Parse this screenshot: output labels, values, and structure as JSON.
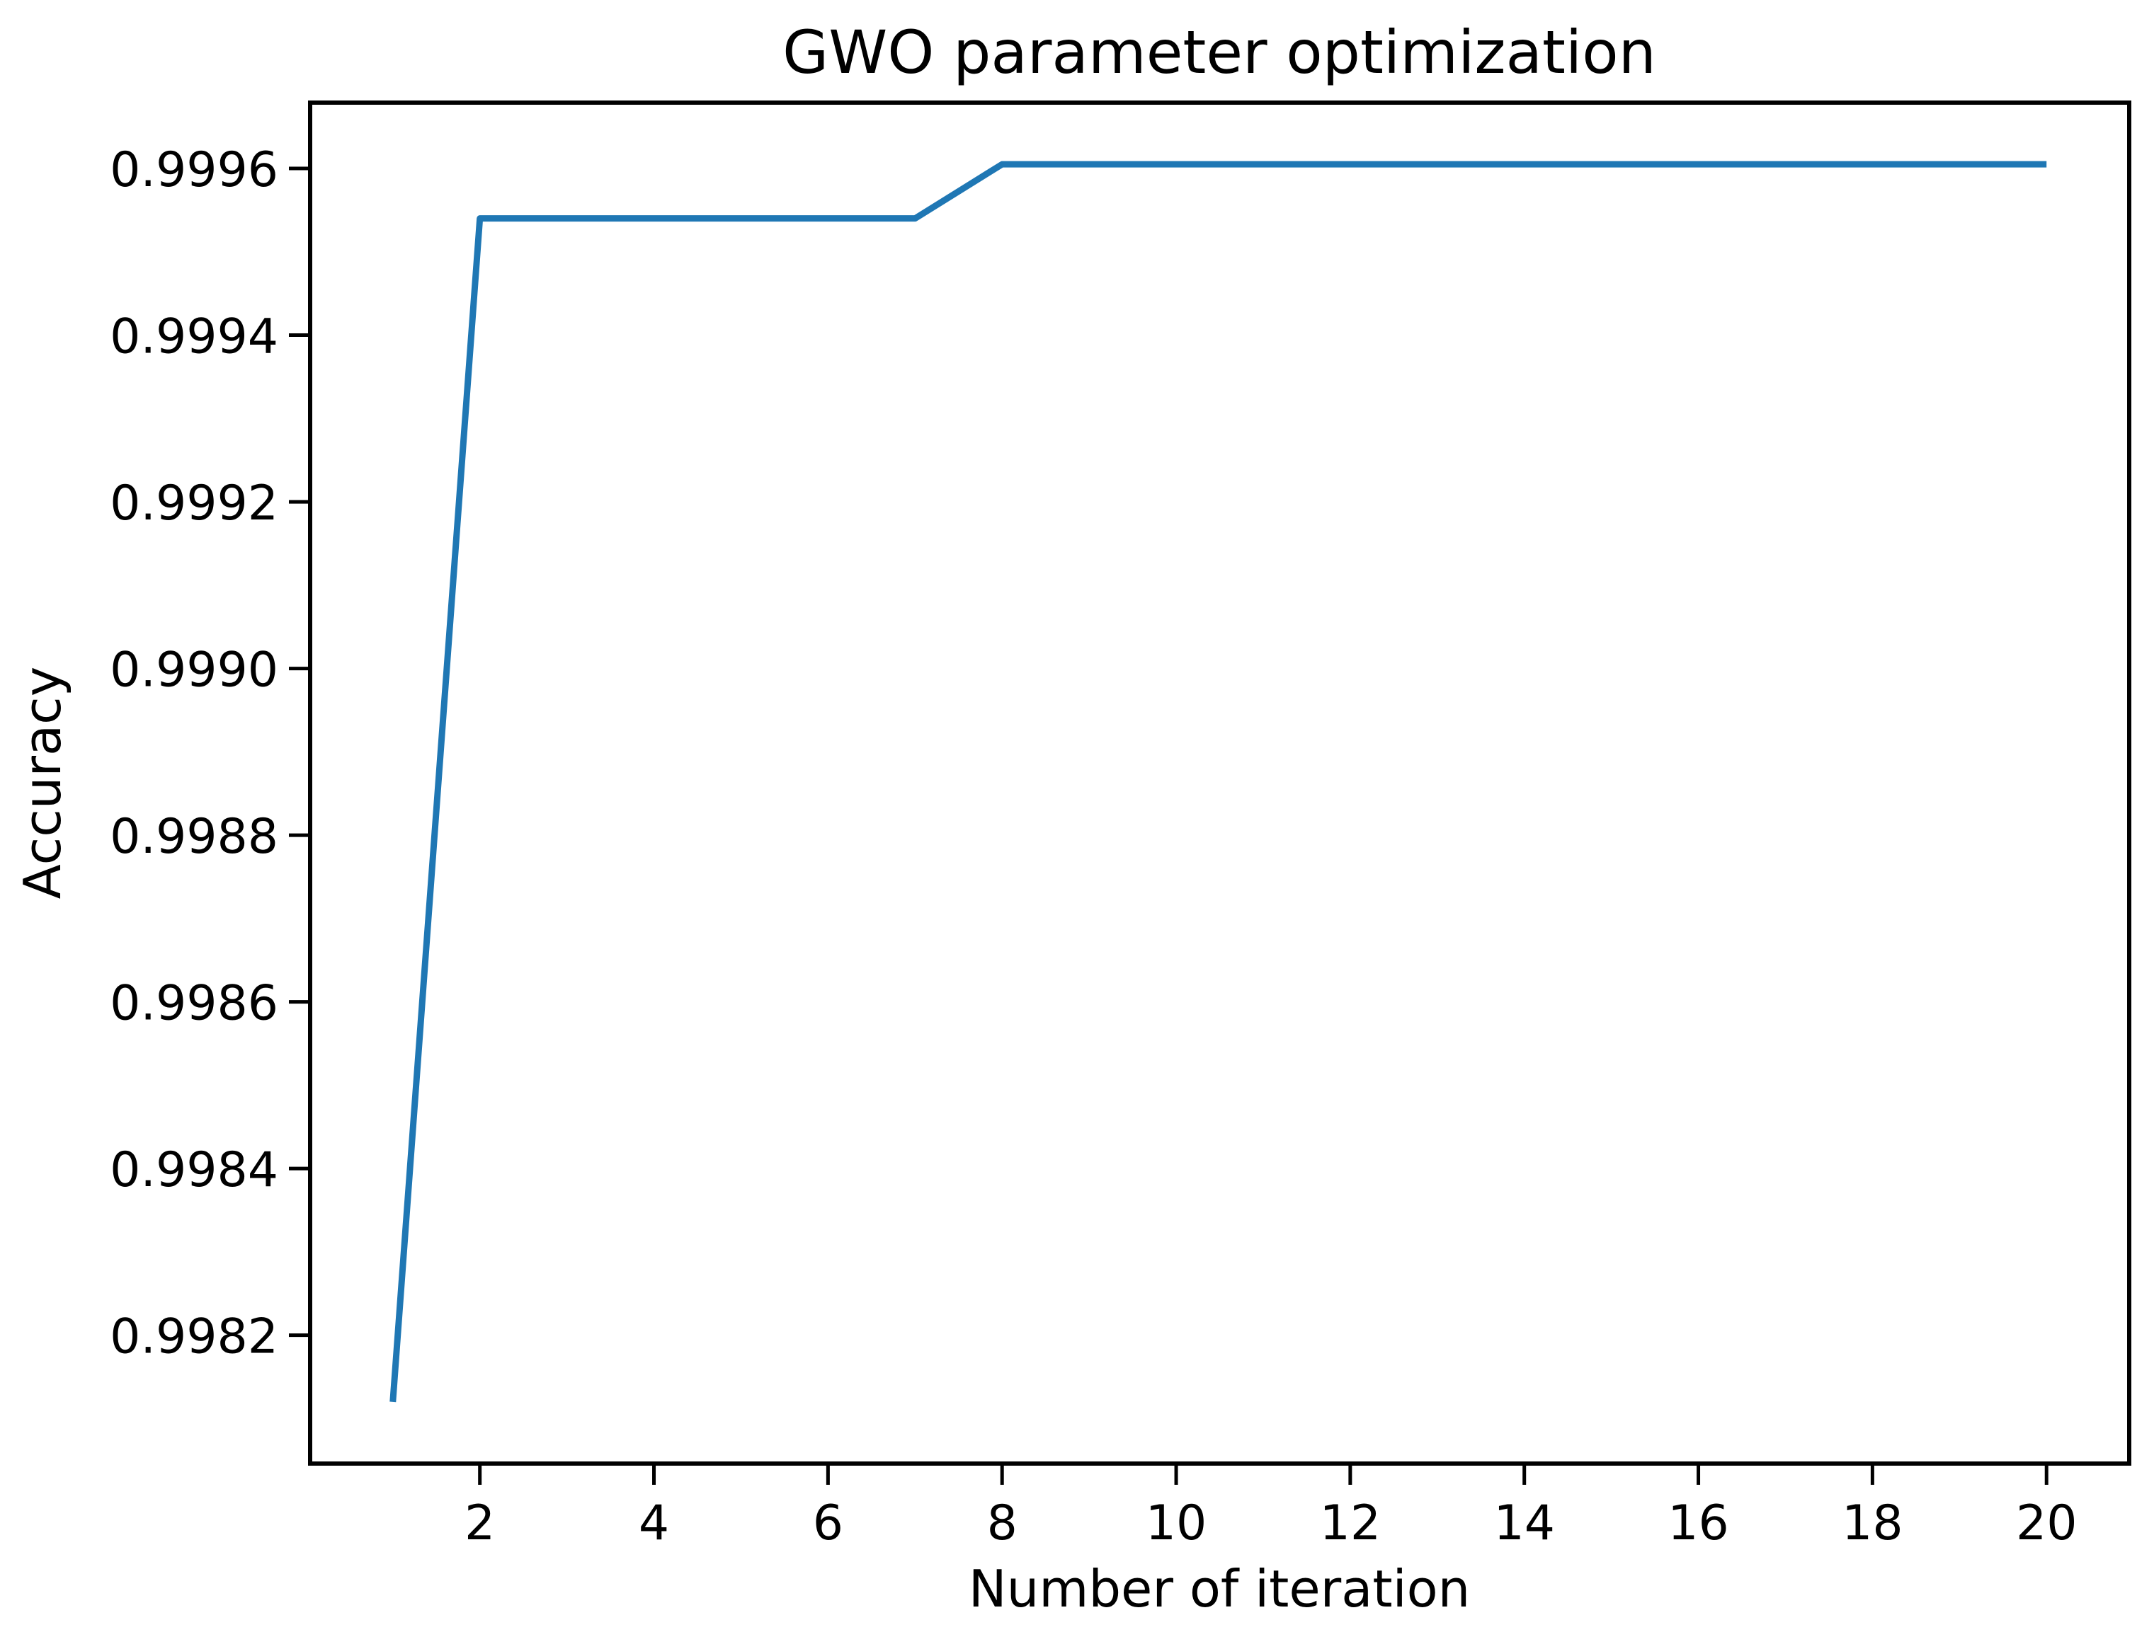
{
  "chart_data": {
    "type": "line",
    "title": "GWO parameter optimization",
    "xlabel": "Number of iteration",
    "ylabel": "Accuracy",
    "x": [
      1,
      2,
      3,
      4,
      5,
      6,
      7,
      8,
      9,
      10,
      11,
      12,
      13,
      14,
      15,
      16,
      17,
      18,
      19,
      20
    ],
    "y": [
      0.99812,
      0.99954,
      0.99954,
      0.99954,
      0.99954,
      0.99954,
      0.99954,
      0.999605,
      0.999605,
      0.999605,
      0.999605,
      0.999605,
      0.999605,
      0.999605,
      0.999605,
      0.999605,
      0.999605,
      0.999605,
      0.999605,
      0.999605
    ],
    "xtick_labels": [
      "2",
      "4",
      "6",
      "8",
      "10",
      "12",
      "14",
      "16",
      "18",
      "20"
    ],
    "ytick_labels": [
      "0.9982",
      "0.9984",
      "0.9986",
      "0.9988",
      "0.9990",
      "0.9992",
      "0.9994",
      "0.9996"
    ],
    "xlim": [
      0.05,
      20.95
    ],
    "ylim": [
      0.998046,
      0.999679
    ],
    "line_color": "#1f77b4",
    "axis_color": "#000000",
    "background_color": "#ffffff",
    "grid": false,
    "legend": "none"
  }
}
